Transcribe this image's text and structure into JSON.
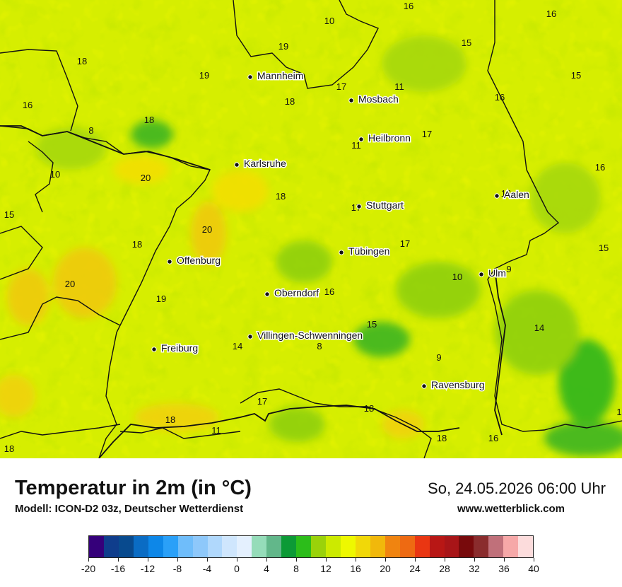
{
  "map": {
    "cities": [
      {
        "name": "Mannheim"
      },
      {
        "name": "Mosbach"
      },
      {
        "name": "Heilbronn"
      },
      {
        "name": "Karlsruhe"
      },
      {
        "name": "Aalen"
      },
      {
        "name": "Stuttgart"
      },
      {
        "name": "Tübingen"
      },
      {
        "name": "Offenburg"
      },
      {
        "name": "Ulm"
      },
      {
        "name": "Oberndorf"
      },
      {
        "name": "Villingen-Schwenningen"
      },
      {
        "name": "Freiburg"
      },
      {
        "name": "Ravensburg"
      }
    ],
    "values": [
      "16",
      "16",
      "10",
      "15",
      "19",
      "18",
      "19",
      "15",
      "17",
      "11",
      "16",
      "18",
      "16",
      "18",
      "8",
      "17",
      "11",
      "10",
      "20",
      "16",
      "18",
      "17",
      "15",
      "16",
      "20",
      "17",
      "18",
      "15",
      "10",
      "9",
      "20",
      "16",
      "19",
      "15",
      "14",
      "8",
      "9",
      "14",
      "17",
      "18",
      "18",
      "11",
      "18",
      "16",
      "18",
      "1"
    ]
  },
  "footer": {
    "title": "Temperatur in 2m (in °C)",
    "model": "Modell: ICON-D2 03z, Deutscher Wetterdienst",
    "datetime": "So, 24.05.2026 06:00 Uhr",
    "website": "www.wetterblick.com"
  },
  "legend": {
    "ticks": [
      "-20",
      "-16",
      "-12",
      "-8",
      "-4",
      "0",
      "4",
      "8",
      "12",
      "16",
      "20",
      "24",
      "28",
      "32",
      "36",
      "40"
    ],
    "colors": [
      "#35007a",
      "#0f3d8c",
      "#084a8e",
      "#0a6cc4",
      "#0d87e8",
      "#2aa0f8",
      "#6fbdfa",
      "#8ec8fa",
      "#b0d8fc",
      "#cfe6fd",
      "#e4f0fe",
      "#95dcb9",
      "#62b78a",
      "#0c9a36",
      "#2cbd1a",
      "#9ad20a",
      "#ccea00",
      "#eef800",
      "#f1d808",
      "#f1b80b",
      "#f08410",
      "#ee6a12",
      "#e93612",
      "#b81715",
      "#a81518",
      "#780a0c",
      "#8a2c2d",
      "#c0707a",
      "#f6a8a8",
      "#fcdcdc"
    ]
  }
}
